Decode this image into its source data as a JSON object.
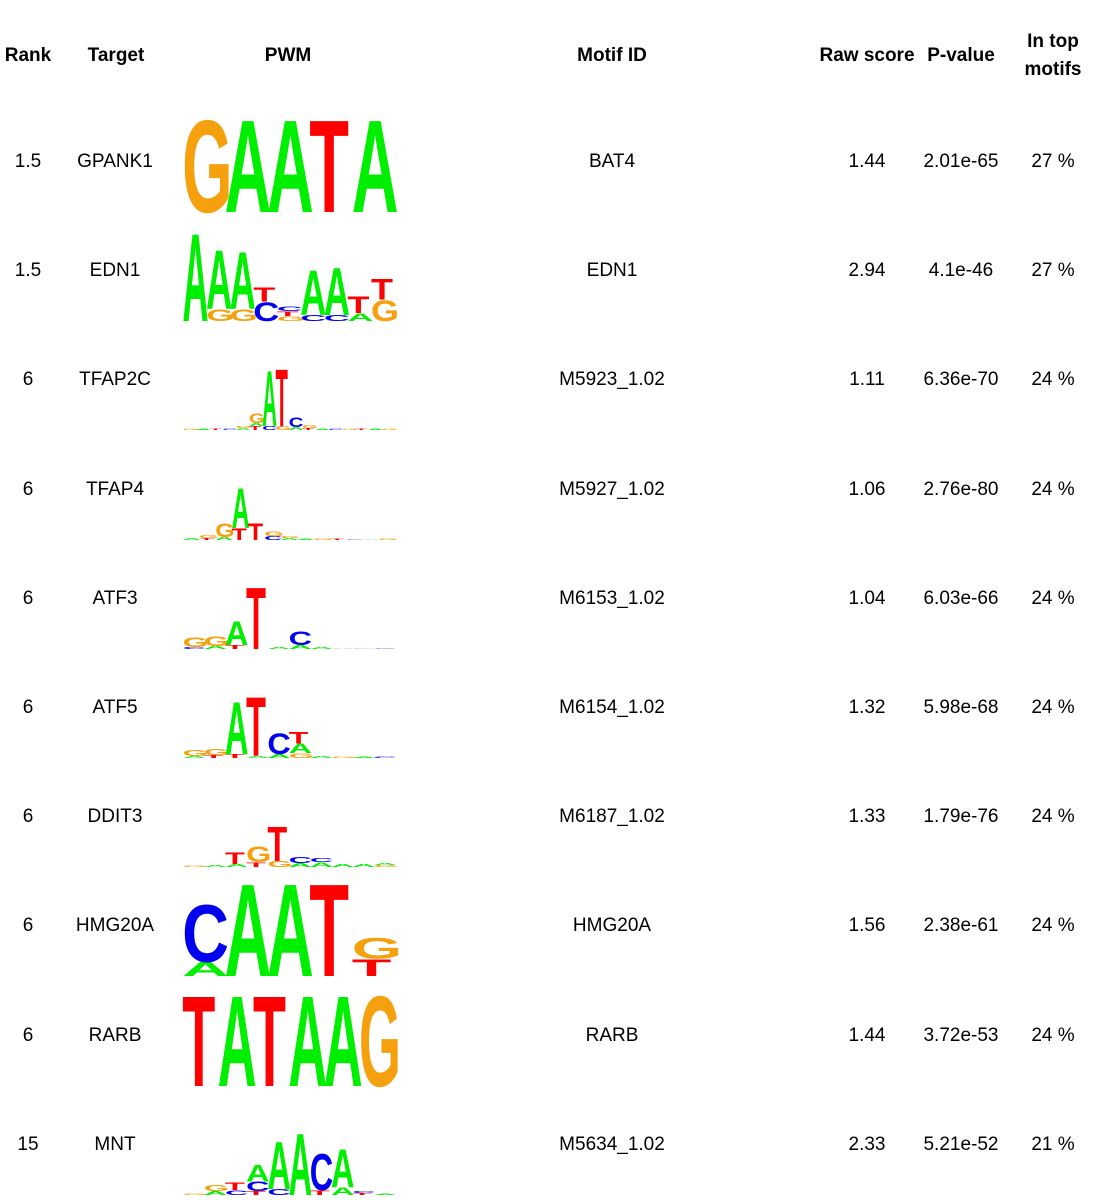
{
  "headers": {
    "rank": "Rank",
    "target": "Target",
    "pwm": "PWM",
    "motif_id": "Motif ID",
    "raw_score": "Raw score",
    "p_value": "P-value",
    "in_top_motifs": "In top\nmotifs"
  },
  "base_colors": {
    "A": "#00ee00",
    "C": "#0000ee",
    "G": "#f5a00d",
    "T": "#ff0000"
  },
  "rows": [
    {
      "rank": "1.5",
      "target": "GPANK1",
      "motif_id": "BAT4",
      "raw_score": "1.44",
      "p_value": "2.01e-65",
      "in_top": "27 %",
      "pwm": [
        [
          [
            "G",
            0.97
          ]
        ],
        [
          [
            "A",
            0.97
          ]
        ],
        [
          [
            "A",
            0.97
          ]
        ],
        [
          [
            "T",
            0.97
          ]
        ],
        [
          [
            "A",
            0.97
          ]
        ]
      ]
    },
    {
      "rank": "1.5",
      "target": "EDN1",
      "motif_id": "EDN1",
      "raw_score": "2.94",
      "p_value": "4.1e-46",
      "in_top": "27 %",
      "pwm": [
        [
          [
            "A",
            0.92
          ]
        ],
        [
          [
            "G",
            0.12
          ],
          [
            "A",
            0.62
          ]
        ],
        [
          [
            "G",
            0.12
          ],
          [
            "A",
            0.6
          ]
        ],
        [
          [
            "C",
            0.2
          ],
          [
            "T",
            0.15
          ]
        ],
        [
          [
            "G",
            0.05
          ],
          [
            "T",
            0.05
          ],
          [
            "C",
            0.05
          ]
        ],
        [
          [
            "C",
            0.06
          ],
          [
            "A",
            0.47
          ]
        ],
        [
          [
            "C",
            0.06
          ],
          [
            "A",
            0.5
          ]
        ],
        [
          [
            "A",
            0.08
          ],
          [
            "T",
            0.18
          ]
        ],
        [
          [
            "G",
            0.22
          ],
          [
            "T",
            0.22
          ]
        ]
      ]
    },
    {
      "rank": "6",
      "target": "TFAP2C",
      "motif_id": "M5923_1.02",
      "raw_score": "1.11",
      "p_value": "6.36e-70",
      "in_top": "24 %",
      "pwm": [
        [
          [
            "G",
            0.01
          ]
        ],
        [
          [
            "A",
            0.01
          ]
        ],
        [
          [
            "T",
            0.01
          ]
        ],
        [
          [
            "C",
            0.015
          ]
        ],
        [
          [
            "A",
            0.02
          ],
          [
            "G",
            0.02
          ]
        ],
        [
          [
            "T",
            0.04
          ],
          [
            "A",
            0.03
          ],
          [
            "G",
            0.1
          ]
        ],
        [
          [
            "C",
            0.04
          ],
          [
            "A",
            0.58
          ]
        ],
        [
          [
            "G",
            0.04
          ],
          [
            "T",
            0.6
          ]
        ],
        [
          [
            "A",
            0.03
          ],
          [
            "C",
            0.1
          ]
        ],
        [
          [
            "T",
            0.02
          ],
          [
            "G",
            0.03
          ]
        ],
        [
          [
            "A",
            0.015
          ]
        ],
        [
          [
            "C",
            0.01
          ]
        ],
        [
          [
            "G",
            0.01
          ]
        ],
        [
          [
            "T",
            0.01
          ]
        ],
        [
          [
            "A",
            0.01
          ]
        ],
        [
          [
            "G",
            0.01
          ]
        ]
      ]
    },
    {
      "rank": "6",
      "target": "TFAP4",
      "motif_id": "M5927_1.02",
      "raw_score": "1.06",
      "p_value": "2.76e-80",
      "in_top": "24 %",
      "pwm": [
        [
          [
            "A",
            0.02
          ]
        ],
        [
          [
            "T",
            0.02
          ],
          [
            "G",
            0.03
          ]
        ],
        [
          [
            "A",
            0.03
          ],
          [
            "G",
            0.14
          ]
        ],
        [
          [
            "T",
            0.12
          ],
          [
            "A",
            0.42
          ]
        ],
        [
          [
            "T",
            0.18
          ]
        ],
        [
          [
            "C",
            0.04
          ],
          [
            "G",
            0.05
          ]
        ],
        [
          [
            "A",
            0.02
          ],
          [
            "G",
            0.02
          ]
        ],
        [
          [
            "A",
            0.01
          ]
        ],
        [
          [
            "G",
            0.01
          ]
        ],
        [
          [
            "T",
            0.01
          ]
        ],
        [
          [
            "C",
            0.005
          ]
        ],
        [
          [
            "A",
            0.005
          ]
        ],
        [
          [
            "G",
            0.01
          ]
        ]
      ]
    },
    {
      "rank": "6",
      "target": "ATF3",
      "motif_id": "M6153_1.02",
      "raw_score": "1.04",
      "p_value": "6.03e-66",
      "in_top": "24 %",
      "pwm": [
        [
          [
            "C",
            0.02
          ],
          [
            "G",
            0.1
          ]
        ],
        [
          [
            "A",
            0.03
          ],
          [
            "G",
            0.1
          ]
        ],
        [
          [
            "T",
            0.04
          ],
          [
            "A",
            0.25
          ]
        ],
        [
          [
            "T",
            0.65
          ]
        ],
        [
          [
            "A",
            0.02
          ]
        ],
        [
          [
            "A",
            0.04
          ],
          [
            "C",
            0.14
          ]
        ],
        [
          [
            "A",
            0.02
          ]
        ],
        [
          [
            "A",
            0.005
          ]
        ],
        [
          [
            "G",
            0.005
          ]
        ],
        [
          [
            "C",
            0.005
          ]
        ]
      ]
    },
    {
      "rank": "6",
      "target": "ATF5",
      "motif_id": "M6154_1.02",
      "raw_score": "1.32",
      "p_value": "5.98e-68",
      "in_top": "24 %",
      "pwm": [
        [
          [
            "A",
            0.02
          ],
          [
            "G",
            0.06
          ]
        ],
        [
          [
            "T",
            0.03
          ],
          [
            "G",
            0.06
          ]
        ],
        [
          [
            "T",
            0.04
          ],
          [
            "A",
            0.55
          ]
        ],
        [
          [
            "A",
            0.02
          ],
          [
            "T",
            0.62
          ]
        ],
        [
          [
            "A",
            0.04
          ],
          [
            "C",
            0.22
          ]
        ],
        [
          [
            "G",
            0.05
          ],
          [
            "A",
            0.1
          ],
          [
            "T",
            0.12
          ]
        ],
        [
          [
            "A",
            0.02
          ]
        ],
        [
          [
            "G",
            0.01
          ]
        ],
        [
          [
            "A",
            0.01
          ]
        ],
        [
          [
            "C",
            0.01
          ]
        ]
      ]
    },
    {
      "rank": "6",
      "target": "DDIT3",
      "motif_id": "M6187_1.02",
      "raw_score": "1.33",
      "p_value": "1.79e-76",
      "in_top": "24 %",
      "pwm": [
        [
          [
            "G",
            0.01
          ]
        ],
        [
          [
            "A",
            0.02
          ]
        ],
        [
          [
            "A",
            0.03
          ],
          [
            "T",
            0.12
          ]
        ],
        [
          [
            "T",
            0.05
          ],
          [
            "G",
            0.16
          ]
        ],
        [
          [
            "G",
            0.06
          ],
          [
            "T",
            0.36
          ]
        ],
        [
          [
            "A",
            0.04
          ],
          [
            "C",
            0.06
          ]
        ],
        [
          [
            "A",
            0.05
          ],
          [
            "C",
            0.04
          ]
        ],
        [
          [
            "A",
            0.03
          ]
        ],
        [
          [
            "A",
            0.03
          ]
        ],
        [
          [
            "G",
            0.02
          ],
          [
            "A",
            0.02
          ]
        ]
      ]
    },
    {
      "rank": "6",
      "target": "HMG20A",
      "motif_id": "HMG20A",
      "raw_score": "1.56",
      "p_value": "2.38e-61",
      "in_top": "24 %",
      "pwm": [
        [
          [
            "A",
            0.15
          ],
          [
            "C",
            0.6
          ]
        ],
        [
          [
            "A",
            0.97
          ]
        ],
        [
          [
            "A",
            0.97
          ]
        ],
        [
          [
            "T",
            0.97
          ]
        ],
        [
          [
            "T",
            0.18
          ],
          [
            "G",
            0.22
          ]
        ]
      ]
    },
    {
      "rank": "6",
      "target": "RARB",
      "motif_id": "RARB",
      "raw_score": "1.44",
      "p_value": "3.72e-53",
      "in_top": "24 %",
      "pwm": [
        [
          [
            "T",
            0.95
          ]
        ],
        [
          [
            "A",
            0.95
          ]
        ],
        [
          [
            "T",
            0.95
          ]
        ],
        [
          [
            "A",
            0.95
          ]
        ],
        [
          [
            "A",
            0.95
          ]
        ],
        [
          [
            "G",
            0.95
          ]
        ]
      ]
    },
    {
      "rank": "15",
      "target": "MNT",
      "motif_id": "M5634_1.02",
      "raw_score": "2.33",
      "p_value": "5.21e-52",
      "in_top": "21 %",
      "pwm": [
        [
          [
            "G",
            0.01
          ]
        ],
        [
          [
            "A",
            0.04
          ],
          [
            "G",
            0.06
          ]
        ],
        [
          [
            "C",
            0.05
          ],
          [
            "T",
            0.08
          ]
        ],
        [
          [
            "T",
            0.04
          ],
          [
            "C",
            0.1
          ],
          [
            "A",
            0.18
          ]
        ],
        [
          [
            "C",
            0.06
          ],
          [
            "A",
            0.5
          ]
        ],
        [
          [
            "A",
            0.65
          ]
        ],
        [
          [
            "T",
            0.05
          ],
          [
            "C",
            0.38
          ]
        ],
        [
          [
            "A",
            0.08
          ],
          [
            "A",
            0.4
          ]
        ],
        [
          [
            "T",
            0.02
          ],
          [
            "C",
            0.02
          ]
        ],
        [
          [
            "A",
            0.01
          ]
        ]
      ]
    }
  ]
}
